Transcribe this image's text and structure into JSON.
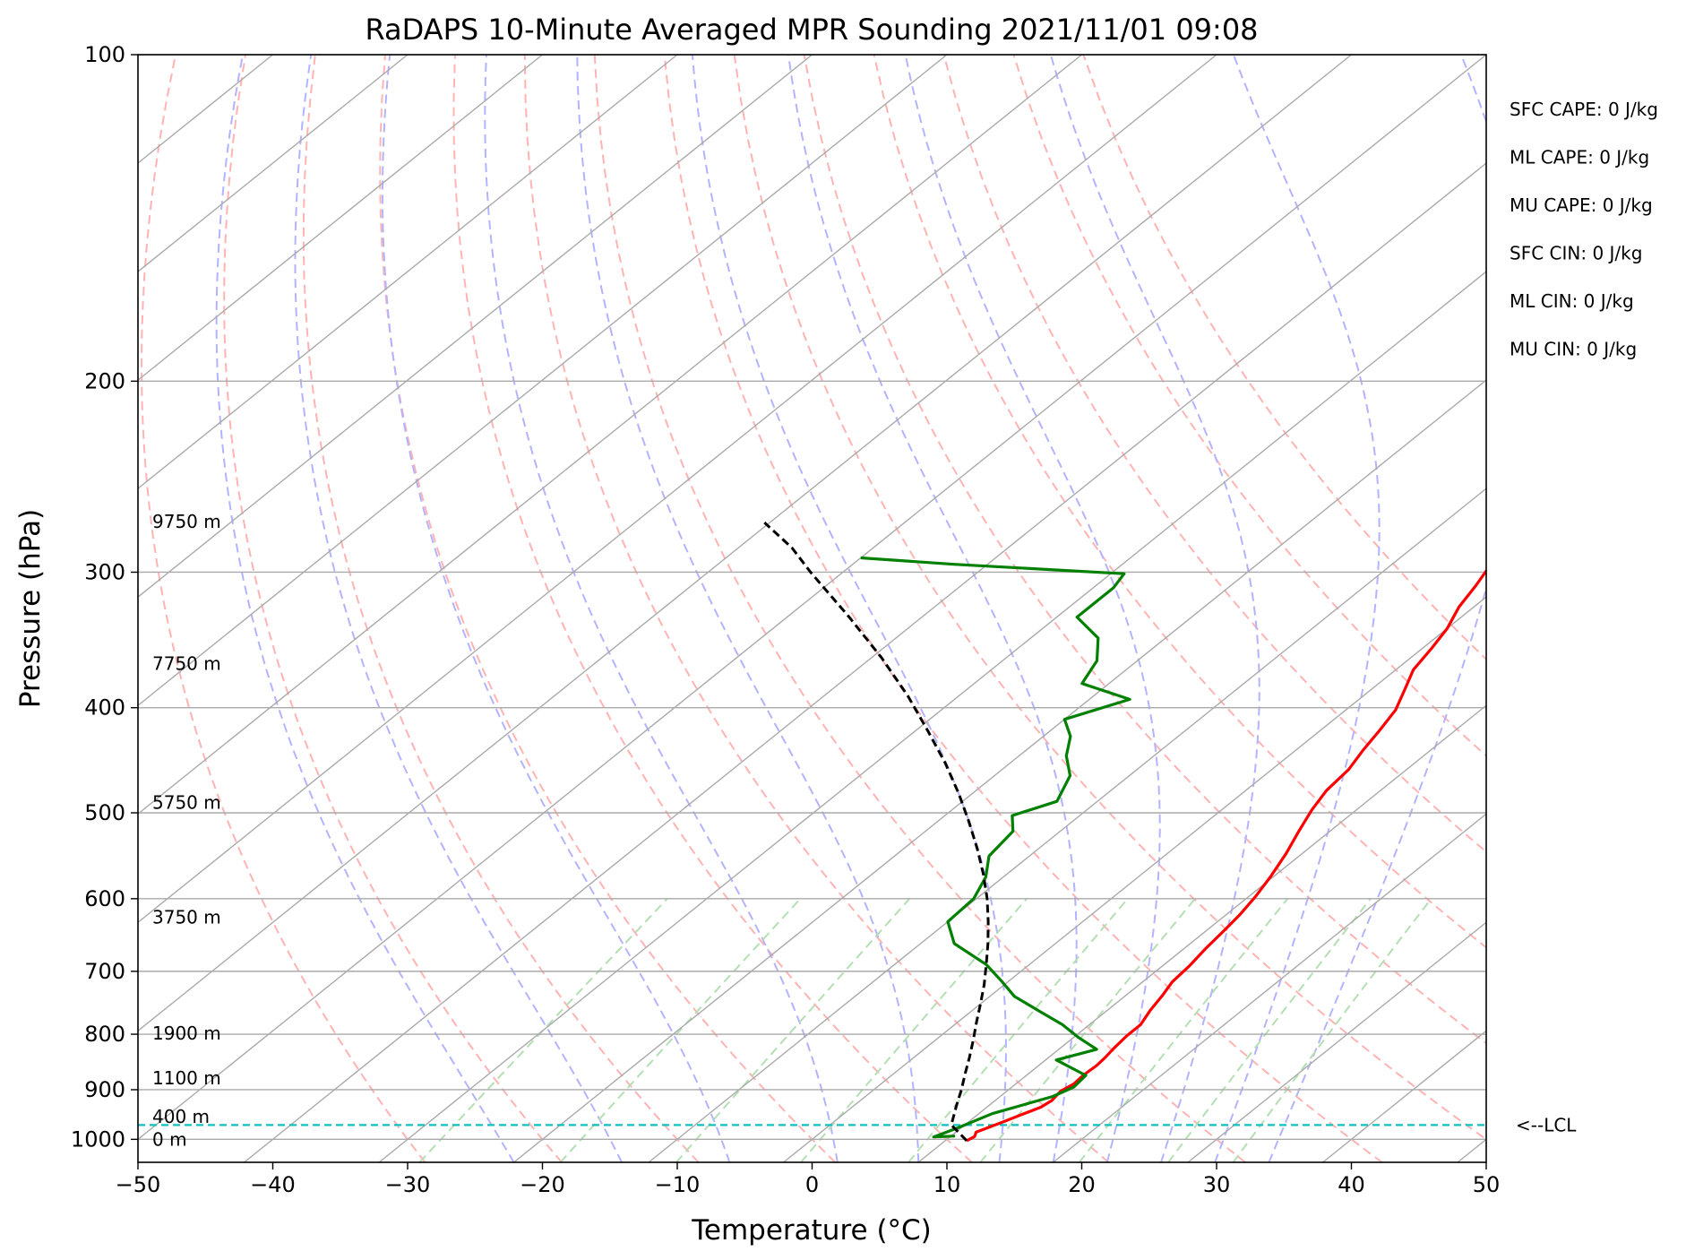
{
  "chart_data": {
    "type": "line",
    "subtype": "skew-t log-p",
    "title": "RaDAPS 10-Minute Averaged MPR Sounding 2021/11/01 09:08",
    "xlabel": "Temperature (°C)",
    "ylabel": "Pressure (hPa)",
    "xlim": [
      -50,
      50
    ],
    "ylim": [
      1050,
      100
    ],
    "y_scale": "log",
    "grid": true,
    "x_ticks": [
      "−50",
      "−40",
      "−30",
      "−20",
      "−10",
      "0",
      "10",
      "20",
      "30",
      "40",
      "50"
    ],
    "x_tick_values": [
      -50,
      -40,
      -30,
      -20,
      -10,
      0,
      10,
      20,
      30,
      40,
      50
    ],
    "y_ticks": [
      "100",
      "200",
      "300",
      "400",
      "500",
      "600",
      "700",
      "800",
      "900",
      "1000"
    ],
    "y_tick_values": [
      100,
      200,
      300,
      400,
      500,
      600,
      700,
      800,
      900,
      1000
    ],
    "height_labels": [
      {
        "text": "9750 m",
        "p": 270
      },
      {
        "text": "7750 m",
        "p": 365
      },
      {
        "text": "5750 m",
        "p": 490
      },
      {
        "text": "3750 m",
        "p": 625
      },
      {
        "text": "1900 m",
        "p": 800
      },
      {
        "text": "1100 m",
        "p": 880
      },
      {
        "text": "400 m",
        "p": 955
      },
      {
        "text": "0 m",
        "p": 1002
      }
    ],
    "indices": [
      {
        "text": "SFC CAPE: 0 J/kg"
      },
      {
        "text": "ML CAPE: 0 J/kg"
      },
      {
        "text": "MU CAPE: 0 J/kg"
      },
      {
        "text": "SFC CIN: 0 J/kg"
      },
      {
        "text": "ML CIN: 0 J/kg"
      },
      {
        "text": "MU CIN: 0 J/kg"
      }
    ],
    "lcl": {
      "label": "<--LCL",
      "p": 970
    },
    "series": [
      {
        "role": "temperature",
        "color": "#ff0000",
        "points": [
          [
            11.6,
            1003
          ],
          [
            11.8,
            994
          ],
          [
            11.5,
            985
          ],
          [
            12.6,
            963
          ],
          [
            13.2,
            950
          ],
          [
            14.0,
            934
          ],
          [
            14.2,
            921
          ],
          [
            14.0,
            903
          ],
          [
            14.3,
            889
          ],
          [
            14.2,
            873
          ],
          [
            14.3,
            855
          ],
          [
            14.2,
            841
          ],
          [
            14.0,
            825
          ],
          [
            13.8,
            803
          ],
          [
            13.8,
            784
          ],
          [
            13.2,
            761
          ],
          [
            12.7,
            736
          ],
          [
            12.2,
            716
          ],
          [
            12.0,
            692
          ],
          [
            11.6,
            667
          ],
          [
            11.3,
            641
          ],
          [
            11.0,
            620
          ],
          [
            10.5,
            597
          ],
          [
            9.8,
            573
          ],
          [
            8.8,
            545
          ],
          [
            7.7,
            520
          ],
          [
            6.7,
            497
          ],
          [
            6.0,
            477
          ],
          [
            5.7,
            456
          ],
          [
            5.0,
            438
          ],
          [
            4.4,
            420
          ],
          [
            3.7,
            402
          ],
          [
            2.5,
            385
          ],
          [
            1.3,
            369
          ],
          [
            0.7,
            353
          ],
          [
            0.0,
            338
          ],
          [
            -1.1,
            323
          ],
          [
            -1.8,
            309
          ],
          [
            -2.6,
            296
          ],
          [
            -2.9,
            283
          ],
          [
            -3.3,
            275
          ]
        ]
      },
      {
        "role": "dewpoint",
        "color": "#008000",
        "points": [
          [
            10.3,
            993
          ],
          [
            8.8,
            995
          ],
          [
            9.8,
            975
          ],
          [
            11.0,
            947
          ],
          [
            13.9,
            913
          ],
          [
            14.6,
            895
          ],
          [
            14.4,
            873
          ],
          [
            10.8,
            845
          ],
          [
            12.8,
            826
          ],
          [
            10.3,
            805
          ],
          [
            8.0,
            784
          ],
          [
            4.8,
            760
          ],
          [
            1.8,
            738
          ],
          [
            -0.5,
            715
          ],
          [
            -3.2,
            690
          ],
          [
            -7.5,
            660
          ],
          [
            -10.0,
            630
          ],
          [
            -10.2,
            600
          ],
          [
            -11.3,
            573
          ],
          [
            -13.0,
            548
          ],
          [
            -13.5,
            520
          ],
          [
            -15.0,
            503
          ],
          [
            -13.0,
            488
          ],
          [
            -14.4,
            462
          ],
          [
            -16.5,
            443
          ],
          [
            -18.0,
            425
          ],
          [
            -20.0,
            410
          ],
          [
            -17.0,
            393
          ],
          [
            -22.0,
            380
          ],
          [
            -23.0,
            362
          ],
          [
            -25.0,
            345
          ],
          [
            -28.5,
            330
          ],
          [
            -28.5,
            310
          ],
          [
            -29.0,
            301
          ],
          [
            -42.5,
            295
          ],
          [
            -50.0,
            291
          ]
        ]
      },
      {
        "role": "parcel",
        "color": "#000000",
        "points": [
          [
            11.6,
            1003
          ],
          [
            9.0,
            970
          ],
          [
            7.6,
            931
          ],
          [
            6.5,
            900
          ],
          [
            5.3,
            870
          ],
          [
            4.1,
            840
          ],
          [
            2.8,
            810
          ],
          [
            1.4,
            780
          ],
          [
            0.0,
            750
          ],
          [
            -1.5,
            720
          ],
          [
            -3.2,
            690
          ],
          [
            -5.0,
            660
          ],
          [
            -7.0,
            630
          ],
          [
            -9.2,
            600
          ],
          [
            -11.7,
            570
          ],
          [
            -14.5,
            540
          ],
          [
            -17.6,
            510
          ],
          [
            -21.0,
            480
          ],
          [
            -24.8,
            450
          ],
          [
            -29.1,
            420
          ],
          [
            -33.8,
            390
          ],
          [
            -39.2,
            360
          ],
          [
            -45.4,
            330
          ],
          [
            -52.4,
            300
          ],
          [
            -56.0,
            285
          ],
          [
            -60.4,
            270
          ]
        ]
      }
    ],
    "background": {
      "isotherms": {
        "color": "#aaaaaa"
      },
      "dry_adiabats": {
        "color": "#ffb3b3"
      },
      "moist_adiabats": {
        "color": "#b3b3ff"
      },
      "mixing_ratio": {
        "color": "#b3dfb3"
      },
      "lcl_line": {
        "color": "#11bfbf"
      }
    }
  }
}
